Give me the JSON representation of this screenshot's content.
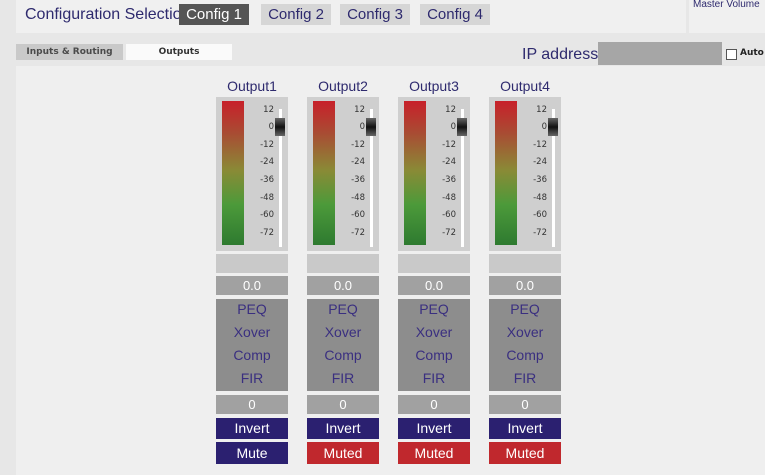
{
  "header": {
    "config_label": "Configuration Selection:",
    "configs": [
      "Config 1",
      "Config 2",
      "Config 3",
      "Config 4"
    ],
    "active_config": "Config 1",
    "master_volume_label": "Master Volume"
  },
  "tabs": [
    {
      "label": "Inputs & Routing",
      "active": false
    },
    {
      "label": "Outputs",
      "active": true
    }
  ],
  "ip": {
    "label": "IP address:",
    "value": ""
  },
  "auto": {
    "label": "Auto",
    "checked": false
  },
  "meter_scale": [
    "12",
    "0",
    "-12",
    "-24",
    "-36",
    "-48",
    "-60",
    "-72"
  ],
  "processing_labels": [
    "PEQ",
    "Xover",
    "Comp",
    "FIR"
  ],
  "colors": {
    "invert_bg": "#2b2070",
    "mute_bg": "#2b2070",
    "muted_bg": "#c0282d",
    "text_accent": "#2e2a6e"
  },
  "outputs": [
    {
      "name": "Output1",
      "level": "0.0",
      "gain": "0",
      "invert_label": "Invert",
      "mute_label": "Mute",
      "muted": false
    },
    {
      "name": "Output2",
      "level": "0.0",
      "gain": "0",
      "invert_label": "Invert",
      "mute_label": "Muted",
      "muted": true
    },
    {
      "name": "Output3",
      "level": "0.0",
      "gain": "0",
      "invert_label": "Invert",
      "mute_label": "Muted",
      "muted": true
    },
    {
      "name": "Output4",
      "level": "0.0",
      "gain": "0",
      "invert_label": "Invert",
      "mute_label": "Muted",
      "muted": true
    }
  ]
}
